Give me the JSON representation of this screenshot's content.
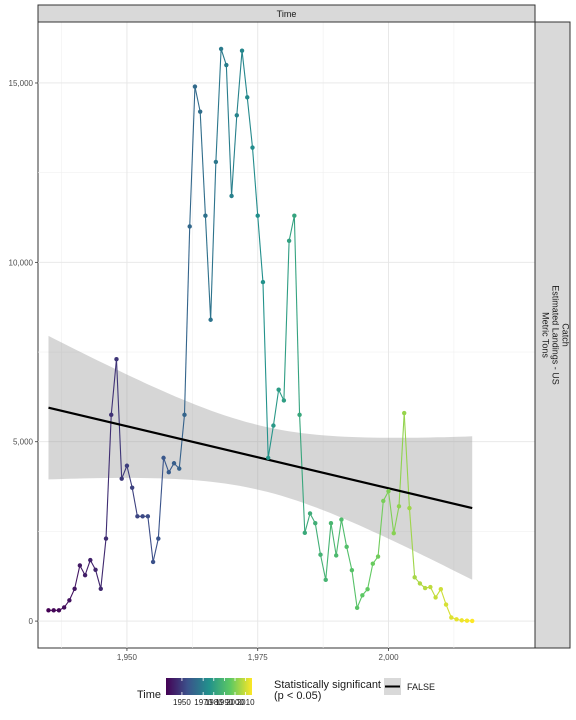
{
  "chart_data": {
    "type": "line",
    "facet_top": "Time",
    "facet_right": [
      "Catch",
      "Estimated Landings - US",
      "Metric Tons"
    ],
    "x_ticks": [
      1950,
      1975,
      2000
    ],
    "x_tick_labels": [
      "1,950",
      "1,975",
      "2,000"
    ],
    "y_ticks": [
      0,
      5000,
      10000,
      15000
    ],
    "y_tick_labels": [
      "0",
      "5,000",
      "10,000",
      "15,000"
    ],
    "xlim": [
      1933,
      2028
    ],
    "ylim": [
      -750,
      16700
    ],
    "grid": true,
    "series": [
      {
        "x": [
          1935,
          1936,
          1937,
          1938,
          1939,
          1940,
          1941,
          1942,
          1943,
          1944,
          1945,
          1946,
          1947,
          1948,
          1949,
          1950,
          1951,
          1952,
          1953,
          1954,
          1955,
          1956,
          1957,
          1958,
          1959,
          1960,
          1961,
          1962,
          1963,
          1964,
          1965,
          1966,
          1967,
          1968,
          1969,
          1970,
          1971,
          1972,
          1973,
          1974,
          1975,
          1976,
          1977,
          1978,
          1979,
          1980,
          1981,
          1982,
          1983,
          1984,
          1985,
          1986,
          1987,
          1988,
          1989,
          1990,
          1991,
          1992,
          1993,
          1994,
          1995,
          1996,
          1997,
          1998,
          1999,
          2000,
          2001,
          2002,
          2003,
          2004,
          2005,
          2006,
          2007,
          2008,
          2009,
          2010,
          2011,
          2012,
          2013,
          2014,
          2015,
          2016
        ],
        "y": [
          300,
          300,
          300,
          380,
          580,
          900,
          1550,
          1280,
          1700,
          1430,
          900,
          2300,
          5750,
          7300,
          3970,
          4330,
          3720,
          2920,
          2920,
          2920,
          1650,
          2300,
          4550,
          4150,
          4400,
          4250,
          5750,
          11000,
          14900,
          14200,
          11300,
          8400,
          12800,
          15950,
          15500,
          11850,
          14100,
          15900,
          14600,
          13200,
          11300,
          9450,
          4550,
          5450,
          6450,
          6150,
          10600,
          11300,
          5750,
          2460,
          3000,
          2730,
          1850,
          1150,
          2730,
          1830,
          2830,
          2070,
          1420,
          370,
          720,
          890,
          1600,
          1800,
          3350,
          3620,
          2450,
          3200,
          5800,
          3150,
          1220,
          1050,
          920,
          950,
          660,
          890,
          460,
          100,
          50,
          20,
          10,
          5
        ]
      }
    ],
    "trend": {
      "x": [
        1935,
        2016
      ],
      "y": [
        5950,
        3150
      ],
      "band_lower": [
        3950,
        1200
      ],
      "band_upper": [
        7950,
        5200
      ]
    },
    "legend": {
      "time_title": "Time",
      "time_range": [
        1935,
        2016
      ],
      "time_labels": [
        "1950",
        "1970",
        "1980",
        "1990",
        "2000",
        "2010"
      ],
      "sig_title_line1": "Statistically significant",
      "sig_title_line2": "(p < 0.05)",
      "sig_label": "FALSE"
    }
  }
}
